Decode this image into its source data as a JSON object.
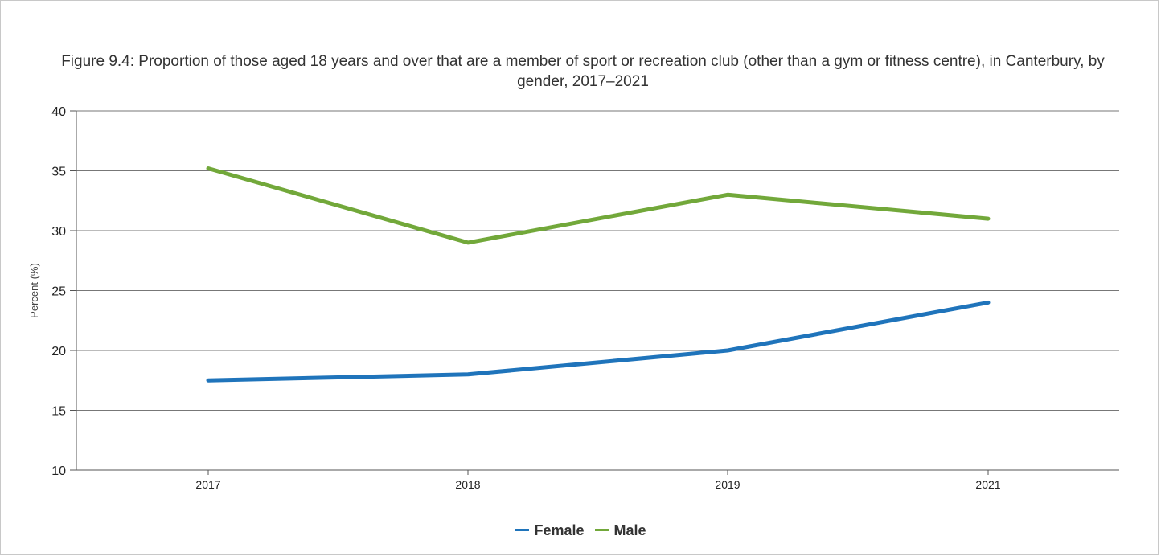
{
  "chart_data": {
    "type": "line",
    "title": "Figure 9.4: Proportion of those aged 18 years and over that are a member of sport or recreation club (other than a gym or fitness centre), in Canterbury, by gender, 2017–2021",
    "xlabel": "",
    "ylabel": "Percent (%)",
    "categories": [
      "2017",
      "2018",
      "2019",
      "2021"
    ],
    "ylim": [
      10,
      40
    ],
    "yticks": [
      "10",
      "15",
      "20",
      "25",
      "30",
      "35",
      "40"
    ],
    "grid": "horizontal",
    "legend_position": "bottom-center",
    "series": [
      {
        "name": "Female",
        "color": "#1f74bb",
        "values": [
          17.5,
          18.0,
          20.0,
          24.0
        ]
      },
      {
        "name": "Male",
        "color": "#72a83a",
        "values": [
          35.2,
          29.0,
          33.0,
          31.0
        ]
      }
    ]
  }
}
